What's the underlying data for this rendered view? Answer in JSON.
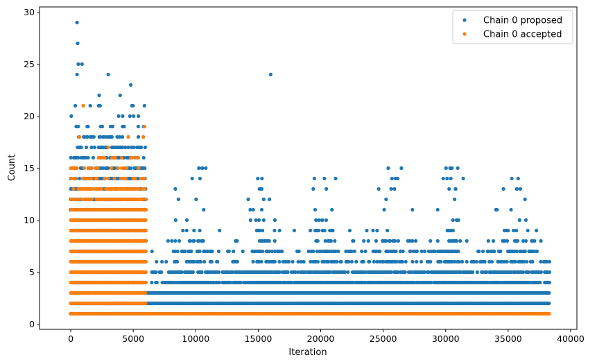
{
  "chart_data": {
    "type": "scatter",
    "title": "",
    "xlabel": "Iteration",
    "ylabel": "Count",
    "xlim": [
      -2500,
      40500
    ],
    "ylim": [
      -0.5,
      30.5
    ],
    "xticks": [
      0,
      5000,
      10000,
      15000,
      20000,
      25000,
      30000,
      35000,
      40000
    ],
    "yticks": [
      0,
      5,
      10,
      15,
      20,
      25,
      30
    ],
    "grid": false,
    "legend_position": "top-right",
    "colors": {
      "proposed": "#1f77b4",
      "accepted": "#ff7f0e"
    },
    "series": [
      {
        "name": "Chain 0 proposed",
        "color": "#1f77b4",
        "bands": [
          {
            "x_range": [
              0,
              6000
            ],
            "y_values": [
              1,
              2,
              3,
              4,
              5,
              6,
              7,
              8,
              9,
              10,
              11,
              12,
              13,
              14,
              15,
              16,
              17,
              18,
              19,
              20,
              21,
              22
            ],
            "density": "dense"
          },
          {
            "x_range": [
              6000,
              38300
            ],
            "y_values": [
              2,
              3
            ],
            "density": "dense"
          },
          {
            "x_range": [
              6500,
              38300
            ],
            "y_values": [
              4,
              5,
              6,
              7,
              8,
              9,
              10,
              11,
              12,
              13,
              14,
              15
            ],
            "density": "periodic"
          }
        ],
        "points": [
          {
            "x": 500,
            "y": 29
          },
          {
            "x": 550,
            "y": 27
          },
          {
            "x": 600,
            "y": 25
          },
          {
            "x": 900,
            "y": 25
          },
          {
            "x": 500,
            "y": 24
          },
          {
            "x": 3000,
            "y": 24
          },
          {
            "x": 4800,
            "y": 23
          },
          {
            "x": 16000,
            "y": 24
          },
          {
            "x": 10500,
            "y": 15
          },
          {
            "x": 10800,
            "y": 15
          },
          {
            "x": 15300,
            "y": 14
          },
          {
            "x": 30500,
            "y": 15
          },
          {
            "x": 29800,
            "y": 14
          },
          {
            "x": 35800,
            "y": 14
          },
          {
            "x": 15100,
            "y": 13
          },
          {
            "x": 25900,
            "y": 13
          },
          {
            "x": 30800,
            "y": 13
          },
          {
            "x": 35700,
            "y": 13
          },
          {
            "x": 14200,
            "y": 12
          },
          {
            "x": 15900,
            "y": 12
          },
          {
            "x": 20900,
            "y": 11
          },
          {
            "x": 20100,
            "y": 10
          },
          {
            "x": 7300,
            "y": 6
          },
          {
            "x": 8200,
            "y": 5
          },
          {
            "x": 17900,
            "y": 4
          },
          {
            "x": 27600,
            "y": 8
          }
        ]
      },
      {
        "name": "Chain 0 accepted",
        "color": "#ff7f0e",
        "bands": [
          {
            "x_range": [
              0,
              6000
            ],
            "y_values": [
              1,
              2,
              3,
              4,
              5,
              6,
              7,
              8,
              9,
              10,
              11,
              12,
              13,
              14,
              15,
              16
            ],
            "density": "dense"
          },
          {
            "x_range": [
              6000,
              38300
            ],
            "y_values": [
              1
            ],
            "density": "dense"
          }
        ],
        "points": [
          {
            "x": 1000,
            "y": 21
          },
          {
            "x": 5900,
            "y": 19
          },
          {
            "x": 5800,
            "y": 18
          },
          {
            "x": 4600,
            "y": 18
          },
          {
            "x": 3000,
            "y": 17
          },
          {
            "x": 5300,
            "y": 16
          },
          {
            "x": 2400,
            "y": 16
          },
          {
            "x": 700,
            "y": 18
          }
        ]
      }
    ]
  }
}
